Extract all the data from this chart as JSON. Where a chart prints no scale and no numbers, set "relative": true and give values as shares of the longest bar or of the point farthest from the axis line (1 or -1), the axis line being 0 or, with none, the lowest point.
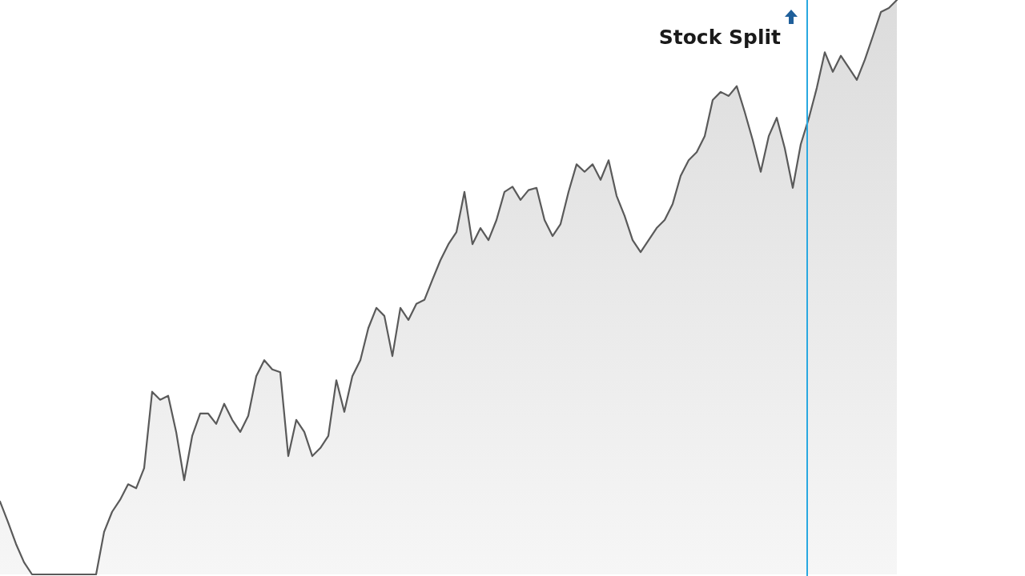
{
  "chart_data": {
    "type": "area",
    "relative": true,
    "categories": [
      null,
      null,
      null,
      null,
      null,
      null,
      null,
      null,
      null,
      null,
      null,
      null,
      null,
      null,
      null,
      null,
      null,
      null,
      null,
      null,
      null,
      null,
      null,
      null,
      null,
      null,
      null,
      null,
      null,
      null,
      null,
      null,
      null,
      null,
      null,
      null,
      null,
      null,
      null,
      null,
      null,
      null,
      null,
      null,
      null,
      null,
      null,
      null,
      null,
      null,
      null,
      null,
      null,
      null,
      null,
      null,
      null,
      null,
      null,
      null,
      null,
      null,
      null,
      null,
      null,
      null,
      null,
      null,
      null,
      null,
      null,
      null,
      null,
      null,
      null,
      null,
      null,
      null,
      null,
      null,
      null,
      null,
      null,
      null,
      null,
      null,
      null,
      null,
      null,
      null,
      null,
      null,
      null,
      null,
      null,
      null,
      null,
      null,
      null,
      null,
      null,
      null,
      null,
      null,
      null,
      null,
      null,
      null,
      null,
      null,
      null,
      null,
      null,
      null,
      null,
      null,
      null,
      null,
      null,
      null,
      null,
      null,
      null,
      null,
      null,
      null,
      null,
      null,
      null
    ],
    "series": [
      {
        "color": "#5a5a5a",
        "values": [
          0.127,
          0.091,
          0.053,
          0.021,
          0,
          0,
          0,
          0,
          0,
          0,
          0,
          0,
          0,
          0.074,
          0.109,
          0.13,
          0.157,
          0.15,
          0.185,
          0.318,
          0.304,
          0.311,
          0.248,
          0.164,
          0.241,
          0.28,
          0.28,
          0.262,
          0.297,
          0.269,
          0.248,
          0.276,
          0.345,
          0.373,
          0.357,
          0.352,
          0.206,
          0.269,
          0.248,
          0.206,
          0.22,
          0.241,
          0.338,
          0.283,
          0.345,
          0.373,
          0.429,
          0.464,
          0.45,
          0.38,
          0.464,
          0.443,
          0.471,
          0.478,
          0.513,
          0.547,
          0.575,
          0.596,
          0.666,
          0.575,
          0.603,
          0.582,
          0.617,
          0.666,
          0.675,
          0.652,
          0.669,
          0.673,
          0.617,
          0.589,
          0.61,
          0.666,
          0.714,
          0.701,
          0.714,
          0.687,
          0.721,
          0.659,
          0.624,
          0.582,
          0.561,
          0.582,
          0.603,
          0.617,
          0.645,
          0.694,
          0.721,
          0.735,
          0.763,
          0.826,
          0.84,
          0.833,
          0.85,
          0.805,
          0.756,
          0.701,
          0.763,
          0.795,
          0.742,
          0.673,
          0.749,
          0.794,
          0.847,
          0.909,
          0.875,
          0.903,
          0.882,
          0.861,
          0.896,
          0.937,
          0.979,
          0.986,
          1,
          null,
          null,
          null,
          null,
          null,
          null,
          null,
          null,
          null,
          null,
          null,
          null,
          null,
          null,
          null,
          null
        ]
      }
    ],
    "annotations": [
      "Stock Split"
    ]
  }
}
